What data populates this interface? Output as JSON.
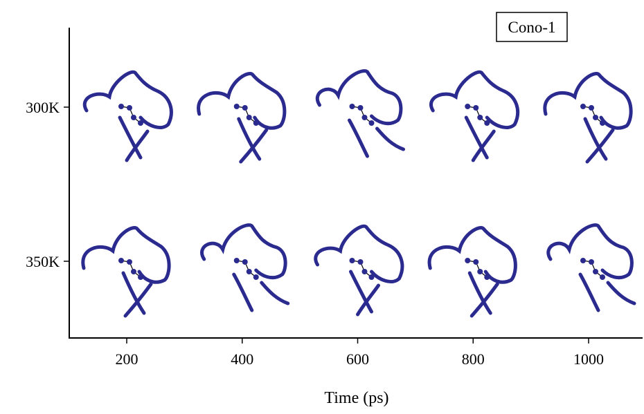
{
  "chart_data": {
    "type": "scatter",
    "xlabel": "Time (ps)",
    "ylabel": "",
    "legend": "Cono-1",
    "legend_position": "top-right",
    "x_ticks": [
      "200",
      "400",
      "600",
      "800",
      "1000"
    ],
    "y_ticks": [
      "300K",
      "350K"
    ],
    "xlim": [
      100,
      1100
    ],
    "marker": "peptide-ribbon-structure",
    "marker_color": "#2b2b8f",
    "series": [
      {
        "y": "300K",
        "x": [
          200,
          400,
          600,
          800,
          1000
        ]
      },
      {
        "y": "350K",
        "x": [
          200,
          400,
          600,
          800,
          1000
        ]
      }
    ]
  }
}
